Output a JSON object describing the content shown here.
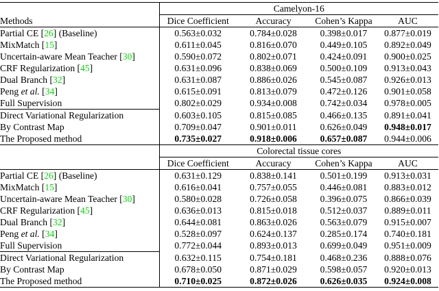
{
  "table": {
    "methods_header": "Methods",
    "columns": [
      "Dice Coefficient",
      "Accuracy",
      "Cohen’s Kappa",
      "AUC"
    ],
    "citation_color": "#00dd00",
    "separator_after_row": 6,
    "methods": [
      {
        "parts": [
          {
            "t": "Partial CE [",
            "s": "n"
          },
          {
            "t": "26",
            "s": "c"
          },
          {
            "t": "] (Baseline)",
            "s": "n"
          }
        ]
      },
      {
        "parts": [
          {
            "t": "MixMatch [",
            "s": "n"
          },
          {
            "t": "15",
            "s": "c"
          },
          {
            "t": "]",
            "s": "n"
          }
        ]
      },
      {
        "parts": [
          {
            "t": "Uncertain-aware Mean Teacher [",
            "s": "n"
          },
          {
            "t": "30",
            "s": "c"
          },
          {
            "t": "]",
            "s": "n"
          }
        ]
      },
      {
        "parts": [
          {
            "t": "CRF Regularization [",
            "s": "n"
          },
          {
            "t": "45",
            "s": "c"
          },
          {
            "t": "]",
            "s": "n"
          }
        ]
      },
      {
        "parts": [
          {
            "t": "Dual Branch [",
            "s": "n"
          },
          {
            "t": "32",
            "s": "c"
          },
          {
            "t": "]",
            "s": "n"
          }
        ]
      },
      {
        "parts": [
          {
            "t": "Peng ",
            "s": "n"
          },
          {
            "t": "et al.",
            "s": "i"
          },
          {
            "t": " [",
            "s": "n"
          },
          {
            "t": "34",
            "s": "c"
          },
          {
            "t": "]",
            "s": "n"
          }
        ]
      },
      {
        "parts": [
          {
            "t": "Full Supervision",
            "s": "n"
          }
        ]
      },
      {
        "parts": [
          {
            "t": "Direct Variational Regularization",
            "s": "n"
          }
        ]
      },
      {
        "parts": [
          {
            "t": "By Contrast Map",
            "s": "n"
          }
        ]
      },
      {
        "parts": [
          {
            "t": "The Proposed method",
            "s": "n"
          }
        ]
      }
    ],
    "sections": [
      {
        "title": "Camelyon-16",
        "rows": [
          {
            "values": [
              "0.563±0.032",
              "0.784±0.028",
              "0.398±0.017",
              "0.877±0.019"
            ],
            "bold": [
              false,
              false,
              false,
              false
            ]
          },
          {
            "values": [
              "0.611±0.045",
              "0.816±0.070",
              "0.449±0.105",
              "0.892±0.049"
            ],
            "bold": [
              false,
              false,
              false,
              false
            ]
          },
          {
            "values": [
              "0.590±0.072",
              "0.802±0.071",
              "0.424±0.091",
              "0.900±0.025"
            ],
            "bold": [
              false,
              false,
              false,
              false
            ]
          },
          {
            "values": [
              "0.631±0.096",
              "0.838±0.069",
              "0.500±0.109",
              "0.913±0.043"
            ],
            "bold": [
              false,
              false,
              false,
              false
            ]
          },
          {
            "values": [
              "0.631±0.087",
              "0.886±0.026",
              "0.545±0.087",
              "0.926±0.013"
            ],
            "bold": [
              false,
              false,
              false,
              false
            ]
          },
          {
            "values": [
              "0.615±0.091",
              "0.813±0.079",
              "0.472±0.126",
              "0.901±0.058"
            ],
            "bold": [
              false,
              false,
              false,
              false
            ]
          },
          {
            "values": [
              "0.802±0.029",
              "0.934±0.008",
              "0.742±0.034",
              "0.978±0.005"
            ],
            "bold": [
              false,
              false,
              false,
              false
            ]
          },
          {
            "values": [
              "0.603±0.105",
              "0.815±0.085",
              "0.466±0.135",
              "0.891±0.041"
            ],
            "bold": [
              false,
              false,
              false,
              false
            ]
          },
          {
            "values": [
              "0.709±0.047",
              "0.901±0.011",
              "0.626±0.049",
              "0.948±0.017"
            ],
            "bold": [
              false,
              false,
              false,
              true
            ]
          },
          {
            "values": [
              "0.735±0.027",
              "0.918±0.006",
              "0.657±0.087",
              "0.944±0.006"
            ],
            "bold": [
              true,
              true,
              true,
              false
            ]
          }
        ]
      },
      {
        "title": "Colorectal tissue cores",
        "rows": [
          {
            "values": [
              "0.631±0.129",
              "0.838±0.141",
              "0.501±0.199",
              "0.913±0.031"
            ],
            "bold": [
              false,
              false,
              false,
              false
            ]
          },
          {
            "values": [
              "0.616±0.041",
              "0.757±0.055",
              "0.446±0.081",
              "0.883±0.012"
            ],
            "bold": [
              false,
              false,
              false,
              false
            ]
          },
          {
            "values": [
              "0.580±0.028",
              "0.726±0.058",
              "0.396±0.075",
              "0.866±0.039"
            ],
            "bold": [
              false,
              false,
              false,
              false
            ]
          },
          {
            "values": [
              "0.636±0.013",
              "0.815±0.018",
              "0.512±0.037",
              "0.889±0.011"
            ],
            "bold": [
              false,
              false,
              false,
              false
            ]
          },
          {
            "values": [
              "0.644±0.081",
              "0.863±0.026",
              "0.563±0.079",
              "0.915±0.007"
            ],
            "bold": [
              false,
              false,
              false,
              false
            ]
          },
          {
            "values": [
              "0.528±0.097",
              "0.624±0.137",
              "0.285±0.174",
              "0.740±0.181"
            ],
            "bold": [
              false,
              false,
              false,
              false
            ]
          },
          {
            "values": [
              "0.772±0.044",
              "0.893±0.013",
              "0.699±0.049",
              "0.951±0.009"
            ],
            "bold": [
              false,
              false,
              false,
              false
            ]
          },
          {
            "values": [
              "0.632±0.115",
              "0.754±0.181",
              "0.468±0.236",
              "0.888±0.076"
            ],
            "bold": [
              false,
              false,
              false,
              false
            ]
          },
          {
            "values": [
              "0.678±0.050",
              "0.871±0.029",
              "0.598±0.057",
              "0.920±0.013"
            ],
            "bold": [
              false,
              false,
              false,
              false
            ]
          },
          {
            "values": [
              "0.710±0.025",
              "0.872±0.026",
              "0.626±0.035",
              "0.924±0.008"
            ],
            "bold": [
              true,
              true,
              true,
              true
            ]
          }
        ]
      }
    ]
  }
}
